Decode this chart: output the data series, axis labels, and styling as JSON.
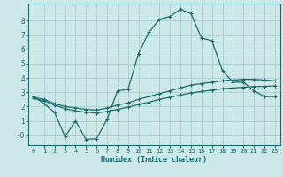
{
  "xlabel": "Humidex (Indice chaleur)",
  "background_color": "#cce8e8",
  "grid_color": "#aacccc",
  "line_color": "#1a6b6b",
  "xlim": [
    -0.5,
    23.5
  ],
  "ylim": [
    -0.7,
    9.2
  ],
  "yticks": [
    0,
    1,
    2,
    3,
    4,
    5,
    6,
    7,
    8
  ],
  "ytick_labels": [
    "-0",
    "1",
    "2",
    "3",
    "4",
    "5",
    "6",
    "7",
    "8"
  ],
  "xticks": [
    0,
    1,
    2,
    3,
    4,
    5,
    6,
    7,
    8,
    9,
    10,
    11,
    12,
    13,
    14,
    15,
    16,
    17,
    18,
    19,
    20,
    21,
    22,
    23
  ],
  "series1_x": [
    0,
    1,
    2,
    3,
    4,
    5,
    6,
    7,
    8,
    9,
    10,
    11,
    12,
    13,
    14,
    15,
    16,
    17,
    18,
    19,
    20,
    21,
    22,
    23
  ],
  "series1_y": [
    2.7,
    2.2,
    1.6,
    -0.1,
    1.0,
    -0.3,
    -0.25,
    1.1,
    3.1,
    3.2,
    5.7,
    7.2,
    8.1,
    8.3,
    8.8,
    8.5,
    6.8,
    6.6,
    4.5,
    3.7,
    3.7,
    3.1,
    2.7,
    2.7
  ],
  "series2_x": [
    0,
    1,
    2,
    3,
    4,
    5,
    6,
    7,
    8,
    9,
    10,
    11,
    12,
    13,
    14,
    15,
    16,
    17,
    18,
    19,
    20,
    21,
    22,
    23
  ],
  "series2_y": [
    2.65,
    2.5,
    2.2,
    2.0,
    1.9,
    1.8,
    1.75,
    1.9,
    2.1,
    2.25,
    2.5,
    2.7,
    2.9,
    3.1,
    3.3,
    3.5,
    3.6,
    3.7,
    3.8,
    3.85,
    3.9,
    3.9,
    3.85,
    3.8
  ],
  "series3_x": [
    0,
    1,
    2,
    3,
    4,
    5,
    6,
    7,
    8,
    9,
    10,
    11,
    12,
    13,
    14,
    15,
    16,
    17,
    18,
    19,
    20,
    21,
    22,
    23
  ],
  "series3_y": [
    2.55,
    2.4,
    2.1,
    1.85,
    1.7,
    1.6,
    1.55,
    1.65,
    1.8,
    1.95,
    2.15,
    2.3,
    2.5,
    2.65,
    2.8,
    2.95,
    3.05,
    3.15,
    3.25,
    3.3,
    3.35,
    3.4,
    3.4,
    3.45
  ]
}
